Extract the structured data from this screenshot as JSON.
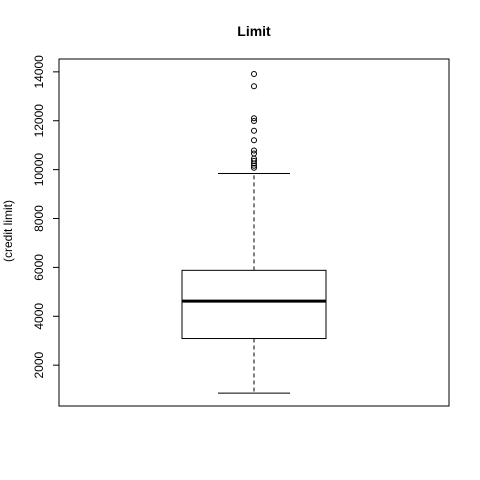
{
  "chart_data": {
    "type": "boxplot",
    "title": "Limit",
    "xlabel": "",
    "ylabel": "(credit limit)",
    "ylim": [
      855,
      14000
    ],
    "yticks": [
      2000,
      4000,
      6000,
      8000,
      10000,
      12000,
      14000
    ],
    "ytick_labels": [
      "2000",
      "4000",
      "6000",
      "8000",
      "10000",
      "12000",
      "14000"
    ],
    "grid": false,
    "legend": "none",
    "box": {
      "min_whisker": 855,
      "q1": 3090,
      "median": 4620,
      "q3": 5880,
      "max_whisker": 9840
    },
    "outliers": [
      10075,
      10160,
      10250,
      10360,
      10450,
      10660,
      10780,
      11200,
      11590,
      11990,
      12100,
      13410,
      13910
    ]
  }
}
